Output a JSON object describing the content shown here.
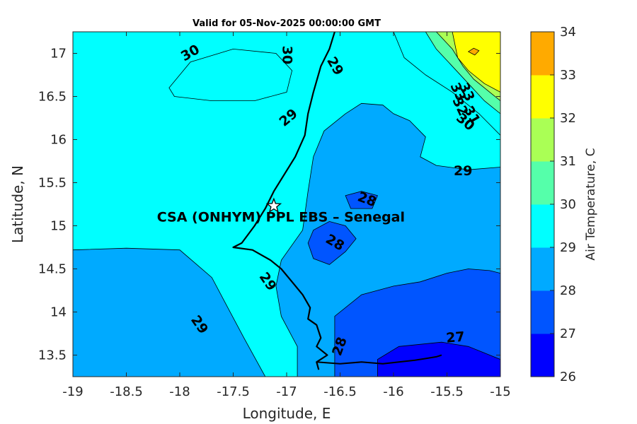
{
  "chart_data": {
    "type": "filled-contour-map",
    "title": "Valid for 05-Nov-2025 00:00:00 GMT",
    "xlabel": "Longitude, E",
    "ylabel": "Latitude, N",
    "xlim": [
      -19,
      -15
    ],
    "ylim": [
      13.25,
      17.25
    ],
    "xticks": [
      -19,
      -18.5,
      -18,
      -17.5,
      -17,
      -16.5,
      -16,
      -15.5,
      -15
    ],
    "yticks": [
      13.5,
      14,
      14.5,
      15,
      15.5,
      16,
      16.5,
      17
    ],
    "xtick_labels": [
      "-19",
      "-18.5",
      "-18",
      "-17.5",
      "-17",
      "-16.5",
      "-16",
      "-15.5",
      "-15"
    ],
    "ytick_labels": [
      "13.5",
      "14",
      "14.5",
      "15",
      "15.5",
      "16",
      "16.5",
      "17"
    ],
    "colorbar": {
      "label": "Air Temperature, C",
      "levels": [
        26,
        27,
        28,
        29,
        30,
        31,
        32,
        33,
        34
      ],
      "level_labels": [
        "26",
        "27",
        "28",
        "29",
        "30",
        "31",
        "32",
        "33",
        "34"
      ],
      "colors": [
        "#0000ff",
        "#0055ff",
        "#00aaff",
        "#00ffff",
        "#55ffaa",
        "#aaff55",
        "#ffff00",
        "#ffaa00",
        "#ff5500"
      ]
    },
    "regions": [
      {
        "level": 28,
        "points": [
          [
            -19,
            13.25
          ],
          [
            -19,
            14.72
          ],
          [
            -18.5,
            14.74
          ],
          [
            -18,
            14.72
          ],
          [
            -17.7,
            14.4
          ],
          [
            -17.55,
            14.05
          ],
          [
            -17.4,
            13.7
          ],
          [
            -17.2,
            13.25
          ]
        ]
      },
      {
        "level": 28,
        "points": [
          [
            -16.45,
            16.3
          ],
          [
            -16.3,
            16.42
          ],
          [
            -16.1,
            16.4
          ],
          [
            -16.0,
            16.3
          ],
          [
            -15.85,
            16.22
          ],
          [
            -15.7,
            16.03
          ],
          [
            -15.75,
            15.8
          ],
          [
            -15.6,
            15.7
          ],
          [
            -15.3,
            15.65
          ],
          [
            -15.0,
            15.68
          ],
          [
            -15.0,
            13.25
          ],
          [
            -16.9,
            13.25
          ],
          [
            -16.9,
            13.6
          ],
          [
            -17.05,
            13.95
          ],
          [
            -17.1,
            14.3
          ],
          [
            -17.05,
            14.6
          ],
          [
            -16.85,
            14.95
          ],
          [
            -16.8,
            15.4
          ],
          [
            -16.75,
            15.8
          ],
          [
            -16.65,
            16.1
          ]
        ]
      },
      {
        "level": 27,
        "points": [
          [
            -16.8,
            14.8
          ],
          [
            -16.75,
            14.95
          ],
          [
            -16.6,
            15.05
          ],
          [
            -16.45,
            15.0
          ],
          [
            -16.35,
            14.85
          ],
          [
            -16.45,
            14.7
          ],
          [
            -16.6,
            14.55
          ],
          [
            -16.75,
            14.62
          ]
        ]
      },
      {
        "level": 27,
        "points": [
          [
            -16.45,
            15.35
          ],
          [
            -16.3,
            15.4
          ],
          [
            -16.15,
            15.35
          ],
          [
            -16.2,
            15.2
          ],
          [
            -16.4,
            15.2
          ]
        ]
      },
      {
        "level": 27,
        "points": [
          [
            -16.55,
            13.25
          ],
          [
            -16.55,
            13.95
          ],
          [
            -16.3,
            14.2
          ],
          [
            -16.0,
            14.3
          ],
          [
            -15.75,
            14.35
          ],
          [
            -15.5,
            14.45
          ],
          [
            -15.3,
            14.5
          ],
          [
            -15.1,
            14.48
          ],
          [
            -15.0,
            14.45
          ],
          [
            -15.0,
            13.25
          ]
        ]
      },
      {
        "level": 26,
        "points": [
          [
            -16.15,
            13.25
          ],
          [
            -16.15,
            13.45
          ],
          [
            -15.95,
            13.6
          ],
          [
            -15.55,
            13.65
          ],
          [
            -15.3,
            13.6
          ],
          [
            -15.1,
            13.5
          ],
          [
            -15.0,
            13.45
          ],
          [
            -15.0,
            13.25
          ]
        ]
      },
      {
        "level": 29,
        "points": [
          [
            -18.1,
            16.6
          ],
          [
            -17.9,
            16.9
          ],
          [
            -17.5,
            17.05
          ],
          [
            -17.1,
            17.0
          ],
          [
            -16.95,
            16.8
          ],
          [
            -17.0,
            16.55
          ],
          [
            -17.3,
            16.45
          ],
          [
            -17.7,
            16.45
          ],
          [
            -18.05,
            16.5
          ]
        ]
      },
      {
        "level": 29,
        "points": [
          [
            -16.0,
            17.25
          ],
          [
            -15.9,
            16.95
          ],
          [
            -15.7,
            16.75
          ],
          [
            -15.45,
            16.55
          ],
          [
            -15.2,
            16.3
          ],
          [
            -15.0,
            16.05
          ],
          [
            -15.0,
            17.25
          ]
        ]
      },
      {
        "level": 30,
        "points": [
          [
            -15.7,
            17.25
          ],
          [
            -15.6,
            17.05
          ],
          [
            -15.45,
            16.85
          ],
          [
            -15.3,
            16.65
          ],
          [
            -15.15,
            16.45
          ],
          [
            -15.0,
            16.3
          ],
          [
            -15.0,
            17.25
          ]
        ]
      },
      {
        "level": 31,
        "points": [
          [
            -15.6,
            17.25
          ],
          [
            -15.45,
            17.05
          ],
          [
            -15.35,
            16.85
          ],
          [
            -15.25,
            16.7
          ],
          [
            -15.1,
            16.55
          ],
          [
            -15.0,
            16.45
          ],
          [
            -15.0,
            17.25
          ]
        ]
      },
      {
        "level": 32,
        "points": [
          [
            -15.45,
            17.25
          ],
          [
            -15.4,
            16.95
          ],
          [
            -15.3,
            16.8
          ],
          [
            -15.15,
            16.65
          ],
          [
            -15.0,
            16.55
          ],
          [
            -15.0,
            17.25
          ]
        ]
      },
      {
        "level": 33,
        "points": [
          [
            -15.3,
            17.02
          ],
          [
            -15.25,
            17.06
          ],
          [
            -15.2,
            17.03
          ],
          [
            -15.24,
            16.98
          ]
        ]
      }
    ],
    "contour_labels": [
      {
        "text": "30",
        "lon": -17.9,
        "lat": 17.0,
        "angle": -30
      },
      {
        "text": "30",
        "lon": -17.0,
        "lat": 16.98,
        "angle": 90
      },
      {
        "text": "29",
        "lon": -16.55,
        "lat": 16.85,
        "angle": 60
      },
      {
        "text": "29",
        "lon": -16.98,
        "lat": 16.25,
        "angle": -40
      },
      {
        "text": "29",
        "lon": -15.35,
        "lat": 15.63,
        "angle": 0
      },
      {
        "text": "33",
        "lon": -15.4,
        "lat": 16.55,
        "angle": 65
      },
      {
        "text": "33",
        "lon": -15.32,
        "lat": 16.55,
        "angle": 65
      },
      {
        "text": "32",
        "lon": -15.38,
        "lat": 16.38,
        "angle": 65
      },
      {
        "text": "31",
        "lon": -15.27,
        "lat": 16.28,
        "angle": 60
      },
      {
        "text": "30",
        "lon": -15.33,
        "lat": 16.2,
        "angle": 40
      },
      {
        "text": "28",
        "lon": -16.25,
        "lat": 15.3,
        "angle": 20
      },
      {
        "text": "28",
        "lon": -16.55,
        "lat": 14.8,
        "angle": 30
      },
      {
        "text": "29",
        "lon": -17.18,
        "lat": 14.35,
        "angle": 55
      },
      {
        "text": "29",
        "lon": -17.82,
        "lat": 13.85,
        "angle": 55
      },
      {
        "text": "28",
        "lon": -16.5,
        "lat": 13.6,
        "angle": -70
      },
      {
        "text": "27",
        "lon": -15.42,
        "lat": 13.7,
        "angle": -5
      }
    ],
    "coastline": [
      [
        -16.55,
        17.25
      ],
      [
        -16.6,
        17.05
      ],
      [
        -16.68,
        16.85
      ],
      [
        -16.75,
        16.55
      ],
      [
        -16.8,
        16.3
      ],
      [
        -16.83,
        16.05
      ],
      [
        -16.92,
        15.8
      ],
      [
        -17.02,
        15.6
      ],
      [
        -17.12,
        15.4
      ],
      [
        -17.2,
        15.2
      ],
      [
        -17.3,
        15.0
      ],
      [
        -17.42,
        14.8
      ],
      [
        -17.5,
        14.75
      ],
      [
        -17.32,
        14.72
      ],
      [
        -17.15,
        14.6
      ],
      [
        -17.05,
        14.5
      ],
      [
        -16.95,
        14.35
      ],
      [
        -16.85,
        14.2
      ],
      [
        -16.78,
        14.05
      ],
      [
        -16.8,
        13.92
      ],
      [
        -16.72,
        13.85
      ],
      [
        -16.68,
        13.7
      ],
      [
        -16.72,
        13.6
      ],
      [
        -16.62,
        13.5
      ],
      [
        -16.72,
        13.42
      ],
      [
        -16.7,
        13.33
      ]
    ],
    "river_gambia": [
      [
        -16.72,
        13.42
      ],
      [
        -16.5,
        13.4
      ],
      [
        -16.3,
        13.42
      ],
      [
        -16.1,
        13.4
      ],
      [
        -15.95,
        13.42
      ],
      [
        -15.8,
        13.44
      ],
      [
        -15.7,
        13.46
      ],
      [
        -15.6,
        13.48
      ],
      [
        -15.55,
        13.5
      ]
    ],
    "site": {
      "name": "CSA (ONHYM) PPL EBS  – Senegal",
      "lon": -17.12,
      "lat": 15.23
    },
    "colors": {
      "contour_line": "#000000",
      "frame": "#262626"
    }
  }
}
